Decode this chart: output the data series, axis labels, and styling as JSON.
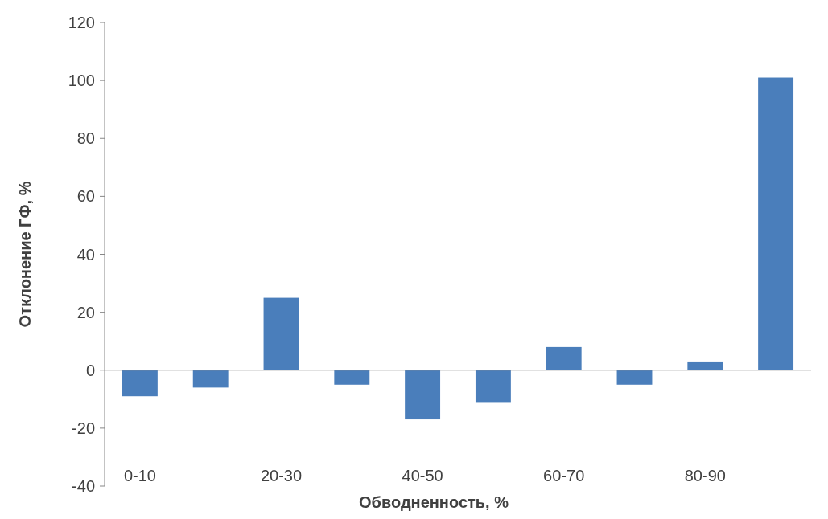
{
  "chart_data": {
    "type": "bar",
    "xlabel": "Обводненность, %",
    "ylabel": "Отклонение ГФ, %",
    "categories": [
      "0-10",
      null,
      "20-30",
      null,
      "40-50",
      null,
      "60-70",
      null,
      "80-90",
      null
    ],
    "values": [
      -9,
      -6,
      25,
      -5,
      -17,
      -11,
      8,
      -5,
      3,
      101
    ],
    "color": "#4a7ebb",
    "ylim": [
      -40,
      120
    ],
    "yticks": [
      -40,
      -20,
      0,
      20,
      40,
      60,
      80,
      100,
      120
    ]
  }
}
